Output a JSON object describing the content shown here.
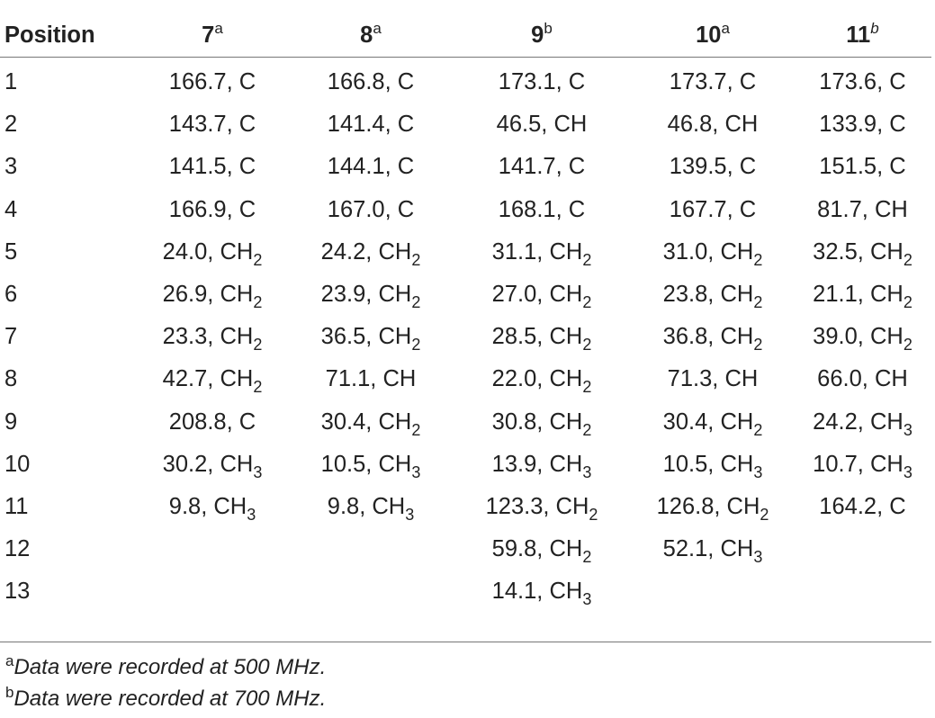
{
  "table": {
    "headers": [
      {
        "label": "Position",
        "sup": ""
      },
      {
        "label": "7",
        "sup": "a"
      },
      {
        "label": "8",
        "sup": "a"
      },
      {
        "label": "9",
        "sup": "b"
      },
      {
        "label": "10",
        "sup": "a"
      },
      {
        "label": "11",
        "sup": "b"
      }
    ],
    "rows": [
      {
        "pos": "1",
        "cells": [
          {
            "v": "166.7, C",
            "s": ""
          },
          {
            "v": "166.8, C",
            "s": ""
          },
          {
            "v": "173.1, C",
            "s": ""
          },
          {
            "v": "173.7, C",
            "s": ""
          },
          {
            "v": "173.6, C",
            "s": ""
          }
        ]
      },
      {
        "pos": "2",
        "cells": [
          {
            "v": "143.7, C",
            "s": ""
          },
          {
            "v": "141.4, C",
            "s": ""
          },
          {
            "v": "46.5, CH",
            "s": ""
          },
          {
            "v": "46.8, CH",
            "s": ""
          },
          {
            "v": "133.9, C",
            "s": ""
          }
        ]
      },
      {
        "pos": "3",
        "cells": [
          {
            "v": "141.5, C",
            "s": ""
          },
          {
            "v": "144.1, C",
            "s": ""
          },
          {
            "v": "141.7, C",
            "s": ""
          },
          {
            "v": "139.5, C",
            "s": ""
          },
          {
            "v": "151.5, C",
            "s": ""
          }
        ]
      },
      {
        "pos": "4",
        "cells": [
          {
            "v": "166.9, C",
            "s": ""
          },
          {
            "v": "167.0, C",
            "s": ""
          },
          {
            "v": "168.1, C",
            "s": ""
          },
          {
            "v": "167.7, C",
            "s": ""
          },
          {
            "v": "81.7, CH",
            "s": ""
          }
        ]
      },
      {
        "pos": "5",
        "cells": [
          {
            "v": "24.0, CH",
            "s": "2"
          },
          {
            "v": "24.2, CH",
            "s": "2"
          },
          {
            "v": "31.1, CH",
            "s": "2"
          },
          {
            "v": "31.0, CH",
            "s": "2"
          },
          {
            "v": "32.5, CH",
            "s": "2"
          }
        ]
      },
      {
        "pos": "6",
        "cells": [
          {
            "v": "26.9, CH",
            "s": "2"
          },
          {
            "v": "23.9, CH",
            "s": "2"
          },
          {
            "v": "27.0, CH",
            "s": "2"
          },
          {
            "v": "23.8, CH",
            "s": "2"
          },
          {
            "v": "21.1, CH",
            "s": "2"
          }
        ]
      },
      {
        "pos": "7",
        "cells": [
          {
            "v": "23.3, CH",
            "s": "2"
          },
          {
            "v": "36.5, CH",
            "s": "2"
          },
          {
            "v": "28.5, CH",
            "s": "2"
          },
          {
            "v": "36.8, CH",
            "s": "2"
          },
          {
            "v": "39.0, CH",
            "s": "2"
          }
        ]
      },
      {
        "pos": "8",
        "cells": [
          {
            "v": "42.7, CH",
            "s": "2"
          },
          {
            "v": "71.1, CH",
            "s": ""
          },
          {
            "v": "22.0, CH",
            "s": "2"
          },
          {
            "v": "71.3, CH",
            "s": ""
          },
          {
            "v": "66.0, CH",
            "s": ""
          }
        ]
      },
      {
        "pos": "9",
        "cells": [
          {
            "v": "208.8, C",
            "s": ""
          },
          {
            "v": "30.4, CH",
            "s": "2"
          },
          {
            "v": "30.8, CH",
            "s": "2"
          },
          {
            "v": "30.4, CH",
            "s": "2"
          },
          {
            "v": "24.2, CH",
            "s": "3"
          }
        ]
      },
      {
        "pos": "10",
        "cells": [
          {
            "v": "30.2, CH",
            "s": "3"
          },
          {
            "v": "10.5, CH",
            "s": "3"
          },
          {
            "v": "13.9, CH",
            "s": "3"
          },
          {
            "v": "10.5, CH",
            "s": "3"
          },
          {
            "v": "10.7, CH",
            "s": "3"
          }
        ]
      },
      {
        "pos": "11",
        "cells": [
          {
            "v": "9.8, CH",
            "s": "3"
          },
          {
            "v": "9.8, CH",
            "s": "3"
          },
          {
            "v": "123.3, CH",
            "s": "2"
          },
          {
            "v": "126.8, CH",
            "s": "2"
          },
          {
            "v": "164.2, C",
            "s": ""
          }
        ]
      },
      {
        "pos": "12",
        "cells": [
          {
            "v": "",
            "s": ""
          },
          {
            "v": "",
            "s": ""
          },
          {
            "v": "59.8, CH",
            "s": "2"
          },
          {
            "v": "52.1, CH",
            "s": "3"
          },
          {
            "v": "",
            "s": ""
          }
        ]
      },
      {
        "pos": "13",
        "cells": [
          {
            "v": "",
            "s": ""
          },
          {
            "v": "",
            "s": ""
          },
          {
            "v": "14.1, CH",
            "s": "3"
          },
          {
            "v": "",
            "s": ""
          },
          {
            "v": "",
            "s": ""
          }
        ]
      }
    ]
  },
  "footnotes": [
    {
      "mark": "a",
      "text": "Data were recorded at 500 MHz."
    },
    {
      "mark": "b",
      "text": "Data were recorded at 700 MHz."
    }
  ]
}
